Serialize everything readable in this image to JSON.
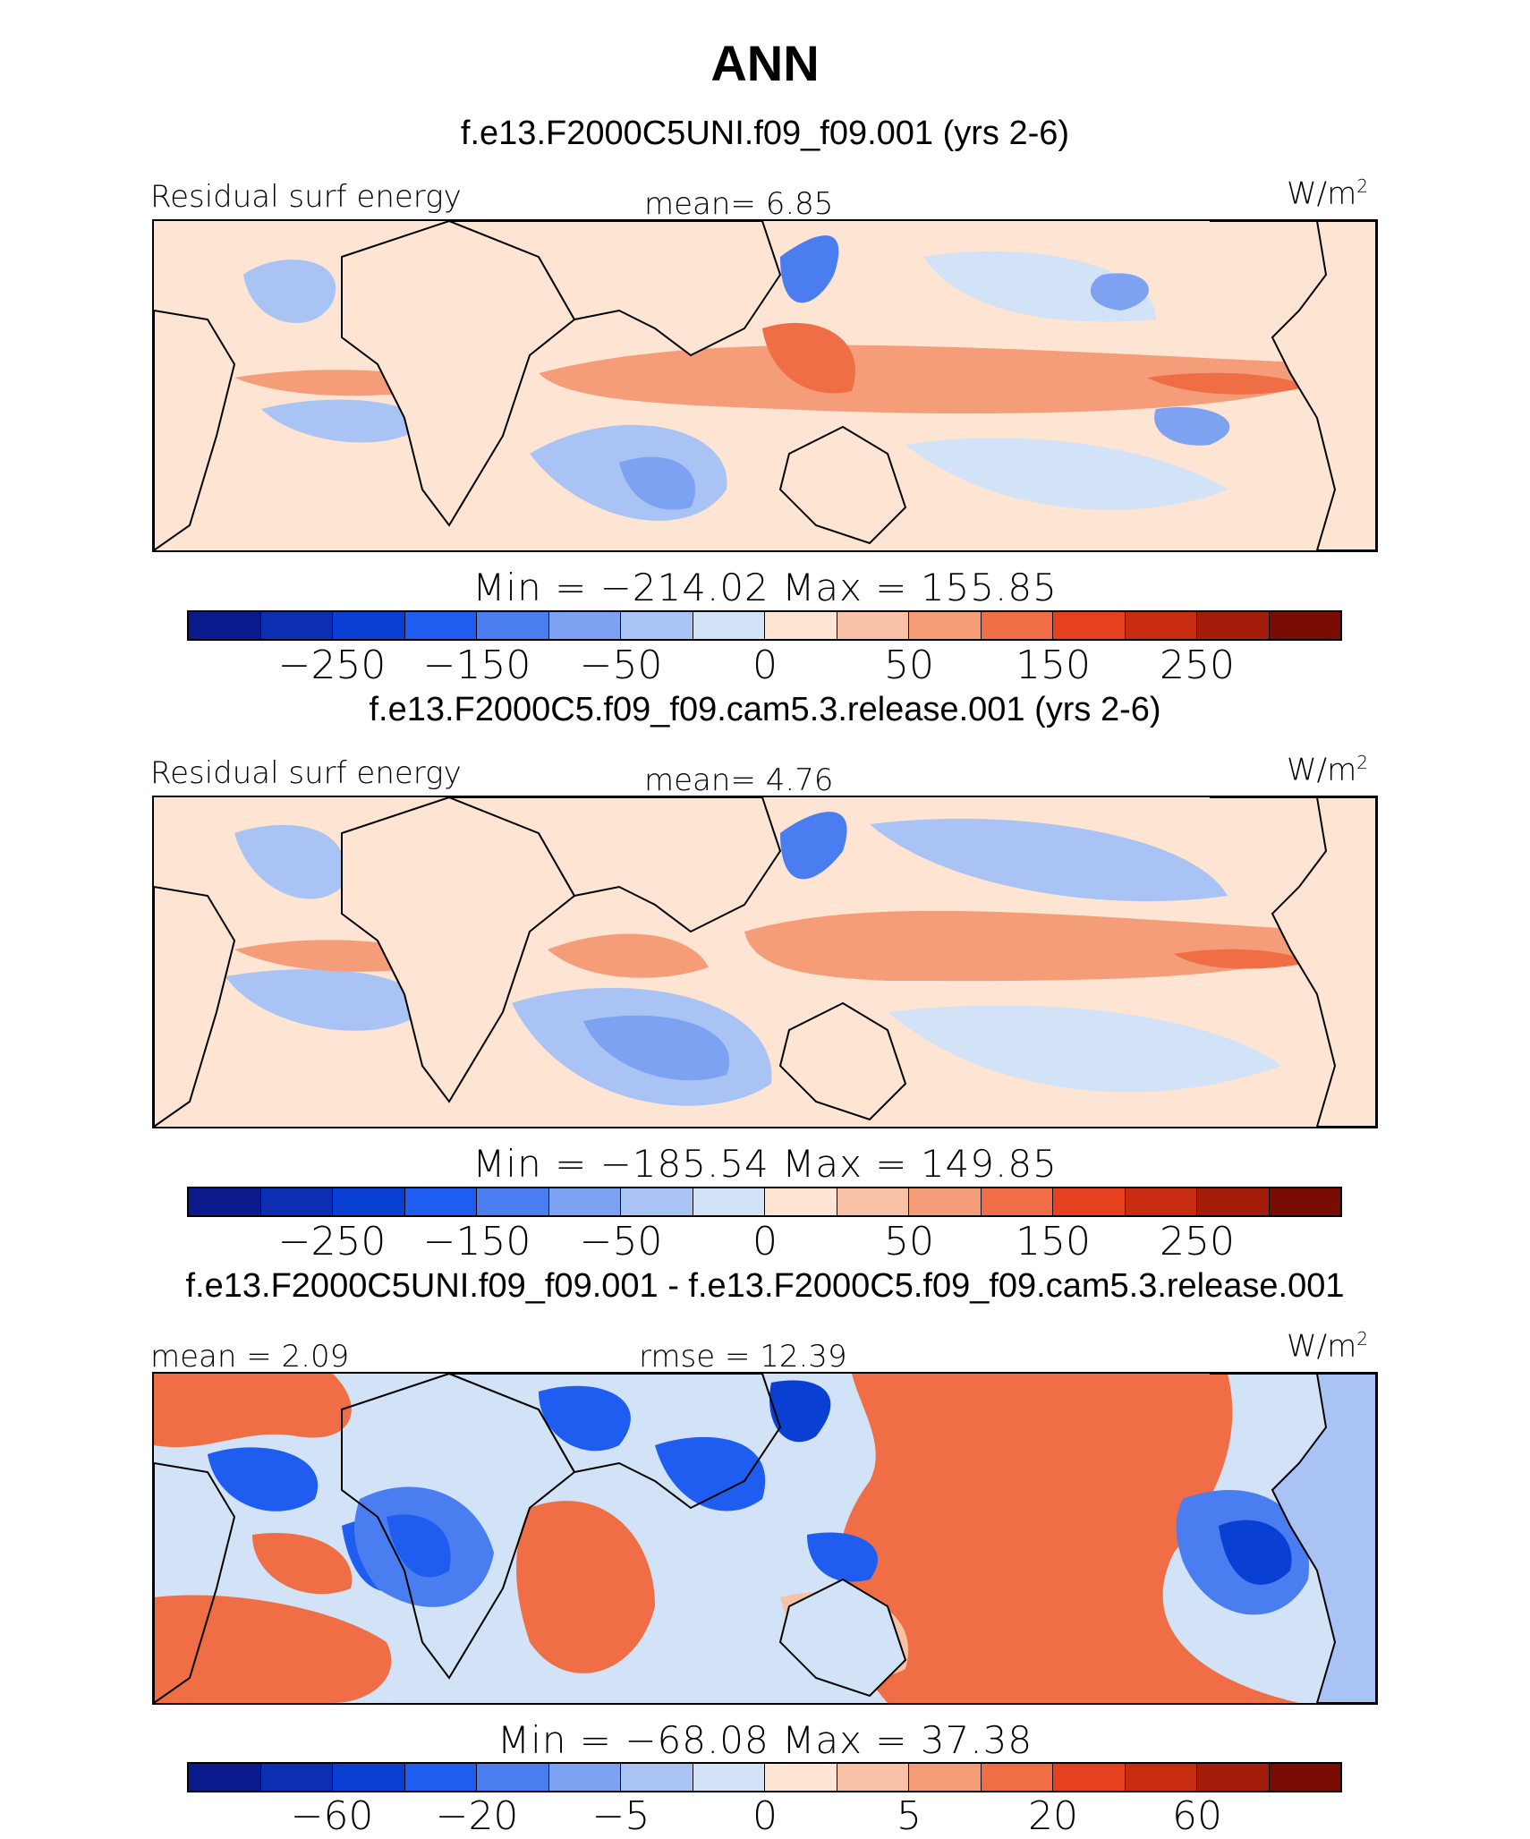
{
  "title": "ANN",
  "chart_data": [
    {
      "type": "heatmap",
      "subtitle": "f.e13.F2000C5UNI.f09_f09.001 (yrs 2-6)",
      "left_label": "Residual surf energy",
      "center_label": "mean=   6.85",
      "units": "W/m",
      "units_sup": "2",
      "mean": 6.85,
      "min": -214.02,
      "max": 155.85,
      "minmax_text": "Min  =  −214.02  Max  =  155.85",
      "colorbar_ticks": [
        "−250",
        "−150",
        "−50",
        "0",
        "50",
        "150",
        "250"
      ]
    },
    {
      "type": "heatmap",
      "subtitle": "f.e13.F2000C5.f09_f09.cam5.3.release.001 (yrs 2-6)",
      "left_label": "Residual surf energy",
      "center_label": "mean=   4.76",
      "units": "W/m",
      "units_sup": "2",
      "mean": 4.76,
      "min": -185.54,
      "max": 149.85,
      "minmax_text": "Min  =  −185.54  Max  =  149.85",
      "colorbar_ticks": [
        "−250",
        "−150",
        "−50",
        "0",
        "50",
        "150",
        "250"
      ]
    },
    {
      "type": "heatmap",
      "subtitle": "f.e13.F2000C5UNI.f09_f09.001 - f.e13.F2000C5.f09_f09.cam5.3.release.001",
      "left_label": "mean  =    2.09",
      "center_label": "rmse  =   12.39",
      "units": "W/m",
      "units_sup": "2",
      "mean": 2.09,
      "rmse": 12.39,
      "min": -68.08,
      "max": 37.38,
      "minmax_text": "Min  =  −68.08  Max  =    37.38",
      "colorbar_ticks": [
        "−60",
        "−20",
        "−5",
        "0",
        "5",
        "20",
        "60"
      ]
    }
  ],
  "colors": [
    "#0a1a8c",
    "#0b2fb0",
    "#0a3fd4",
    "#1f5cf0",
    "#4a7ef0",
    "#7ea2f2",
    "#a9c3f4",
    "#d2e2f7",
    "#fde4d3",
    "#f9c2a6",
    "#f59c78",
    "#ef6e46",
    "#e5411e",
    "#c72b10",
    "#a31d0a",
    "#7a0c04"
  ]
}
